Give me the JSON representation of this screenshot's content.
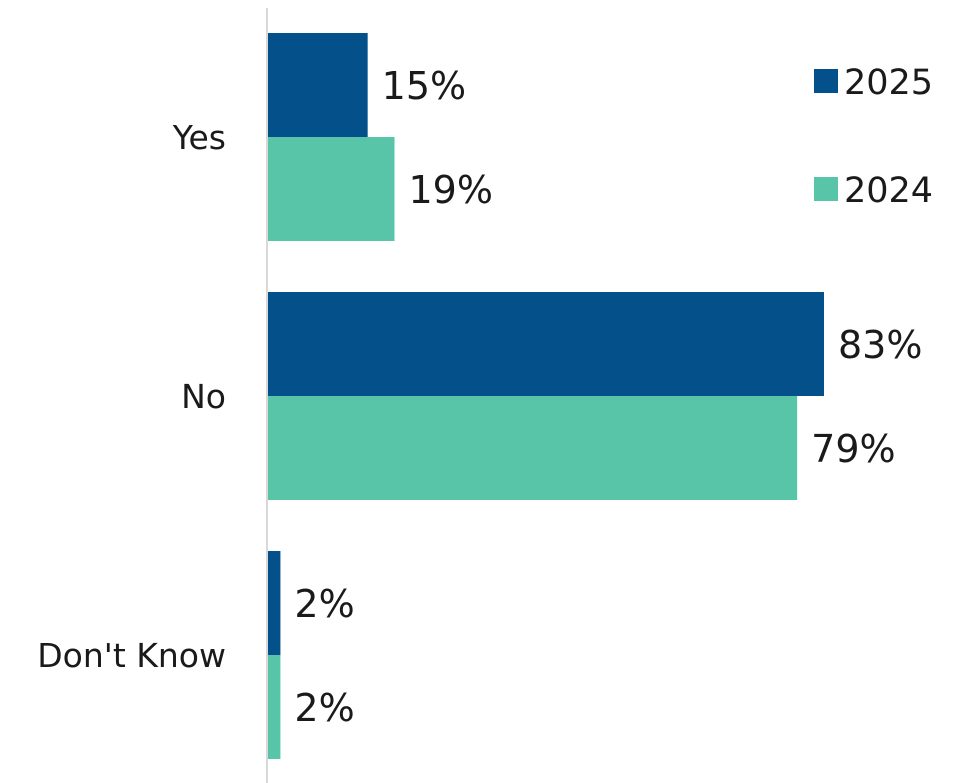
{
  "chart_data": {
    "type": "bar",
    "orientation": "horizontal",
    "categories": [
      "Yes",
      "No",
      "Don't Know"
    ],
    "series": [
      {
        "name": "2025",
        "values": [
          15,
          83,
          2
        ],
        "color": "#03508a"
      },
      {
        "name": "2024",
        "values": [
          19,
          79,
          2
        ],
        "color": "#58c4a8"
      }
    ],
    "data_labels": [
      [
        "15%",
        "83%",
        "2%"
      ],
      [
        "19%",
        "79%",
        "2%"
      ]
    ],
    "value_unit": "%",
    "xlim": [
      0,
      100
    ],
    "grid": false,
    "axis_line_color": "#d9d9d9",
    "legend_position": "top-right",
    "title": "",
    "xlabel": "",
    "ylabel": ""
  }
}
